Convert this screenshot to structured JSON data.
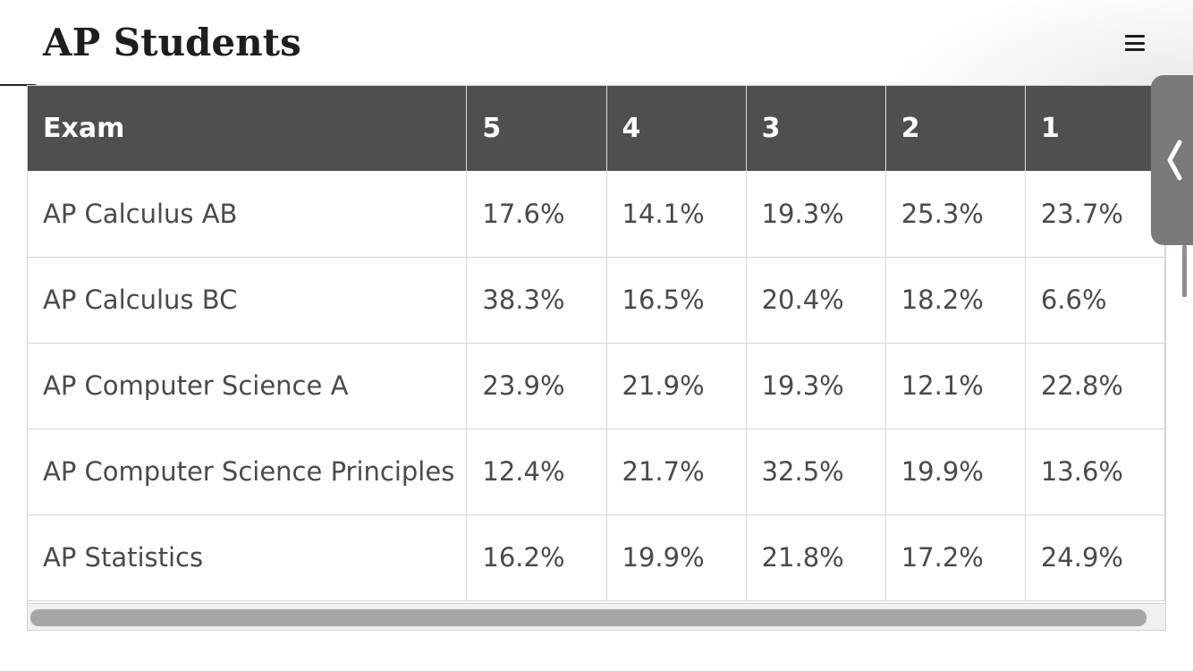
{
  "header": {
    "title": "AP Students",
    "menu_icon": "hamburger-menu-icon"
  },
  "table": {
    "columns": [
      "Exam",
      "5",
      "4",
      "3",
      "2",
      "1"
    ],
    "rows": [
      [
        "AP Calculus AB",
        "17.6%",
        "14.1%",
        "19.3%",
        "25.3%",
        "23.7%"
      ],
      [
        "AP Calculus BC",
        "38.3%",
        "16.5%",
        "20.4%",
        "18.2%",
        "6.6%"
      ],
      [
        "AP Computer Science A",
        "23.9%",
        "21.9%",
        "19.3%",
        "12.1%",
        "22.8%"
      ],
      [
        "AP Computer Science Principles",
        "12.4%",
        "21.7%",
        "32.5%",
        "19.9%",
        "13.6%"
      ],
      [
        "AP Statistics",
        "16.2%",
        "19.9%",
        "21.8%",
        "17.2%",
        "24.9%"
      ]
    ]
  },
  "side_tab": {
    "icon": "chevron-left-icon"
  },
  "colors": {
    "header_bg": "#4f4f4f",
    "header_text": "#ffffff",
    "cell_text": "#4a4a4a",
    "scrollbar_thumb": "#a6a6a6",
    "side_tab_bg": "#7a7a7a"
  }
}
